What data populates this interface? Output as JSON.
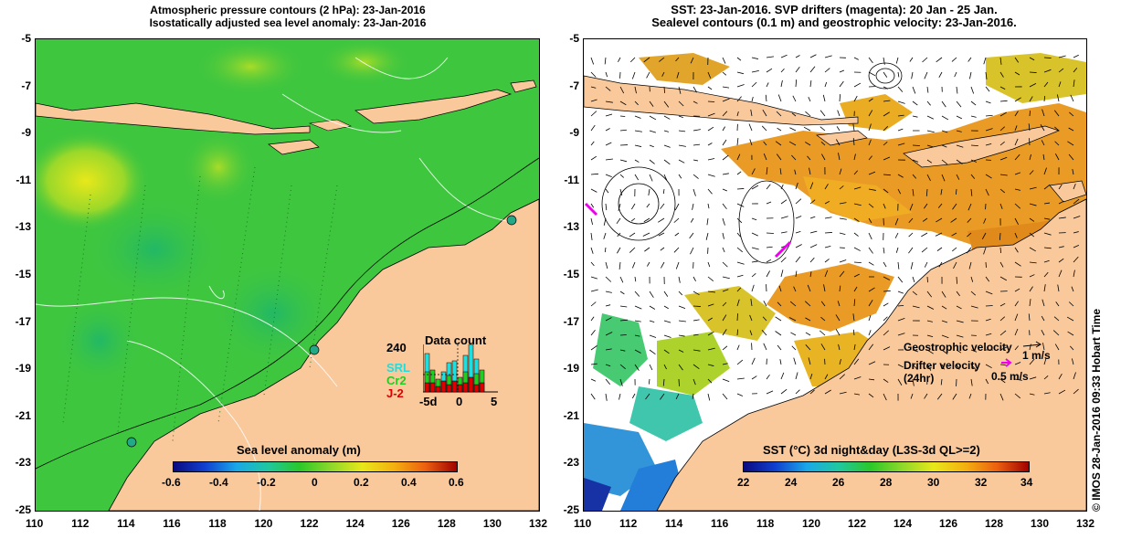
{
  "left_panel": {
    "title_line1": "Atmospheric pressure contours (2 hPa): 23-Jan-2016",
    "title_line2": "Isostatically adjusted sea level anomaly: 23-Jan-2016",
    "colorbar_label": "Sea level anomaly (m)",
    "colorbar_ticks": [
      "-0.6",
      "-0.4",
      "-0.2",
      "0",
      "0.2",
      "0.4",
      "0.6"
    ],
    "inset": {
      "title": "Data count",
      "ymax_label": "240",
      "x_labels": [
        "-5d",
        "0",
        "5"
      ],
      "legend": [
        "SRL",
        "Cr2",
        "J-2"
      ],
      "legend_colors": [
        "#22dddd",
        "#22cc22",
        "#dd0000"
      ]
    }
  },
  "right_panel": {
    "title_line1": "SST: 23-Jan-2016. SVP drifters (magenta): 20 Jan - 25 Jan.",
    "title_line2": "Sealevel contours (0.1 m) and geostrophic velocity: 23-Jan-2016.",
    "geostrophic_label": "Geostrophic velocity",
    "geostrophic_scale": "1 m/s",
    "drifter_label": "Drifter velocity",
    "drifter_sublabel": "(24hr)",
    "drifter_scale": "0.5 m/s",
    "colorbar_label": "SST (°C) 3d night&day (L3S-3d QL>=2)",
    "colorbar_ticks": [
      "22",
      "24",
      "26",
      "28",
      "30",
      "32",
      "34"
    ]
  },
  "axes": {
    "x_ticks": [
      "110",
      "112",
      "114",
      "116",
      "118",
      "120",
      "122",
      "124",
      "126",
      "128",
      "130",
      "132"
    ],
    "y_ticks": [
      "-5",
      "-7",
      "-9",
      "-11",
      "-13",
      "-15",
      "-17",
      "-19",
      "-21",
      "-23",
      "-25"
    ]
  },
  "credit": "© IMOS 28-Jan-2016 09:33 Hobart Time",
  "colors": {
    "land": "#f9c89b",
    "sea_green": "#3fc63f",
    "sst_orange": "#e89a1a",
    "drifter": "#ee00ee"
  }
}
